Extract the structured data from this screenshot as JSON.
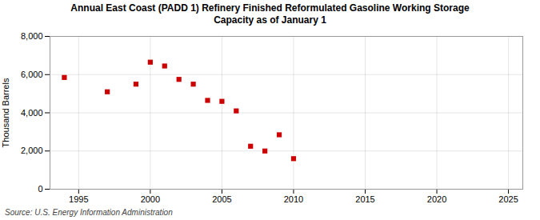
{
  "chart_data": {
    "type": "scatter",
    "title": "Annual East Coast (PADD 1) Refinery Finished Reformulated Gasoline Working Storage\nCapacity as of January 1",
    "ylabel": "Thousand Barrels",
    "source": "Source: U.S. Energy Information Administration",
    "x": [
      1994,
      1997,
      1999,
      2000,
      2001,
      2002,
      2003,
      2004,
      2005,
      2006,
      2007,
      2008,
      2009,
      2010
    ],
    "values": [
      5850,
      5100,
      5500,
      6650,
      6450,
      5750,
      5500,
      4650,
      4600,
      4100,
      2250,
      2000,
      2850,
      1600
    ],
    "color": "#cc0000",
    "marker": "square",
    "xlim": [
      1993,
      2026
    ],
    "ylim": [
      0,
      8000
    ],
    "xticks": [
      1995,
      2000,
      2005,
      2010,
      2015,
      2020,
      2025
    ],
    "yticks": [
      0,
      {
        "value": 2000,
        "label": "2,000"
      },
      {
        "value": 4000,
        "label": "4,000"
      },
      {
        "value": 6000,
        "label": "6,000"
      },
      {
        "value": 8000,
        "label": "8,000"
      }
    ],
    "grid": true
  }
}
